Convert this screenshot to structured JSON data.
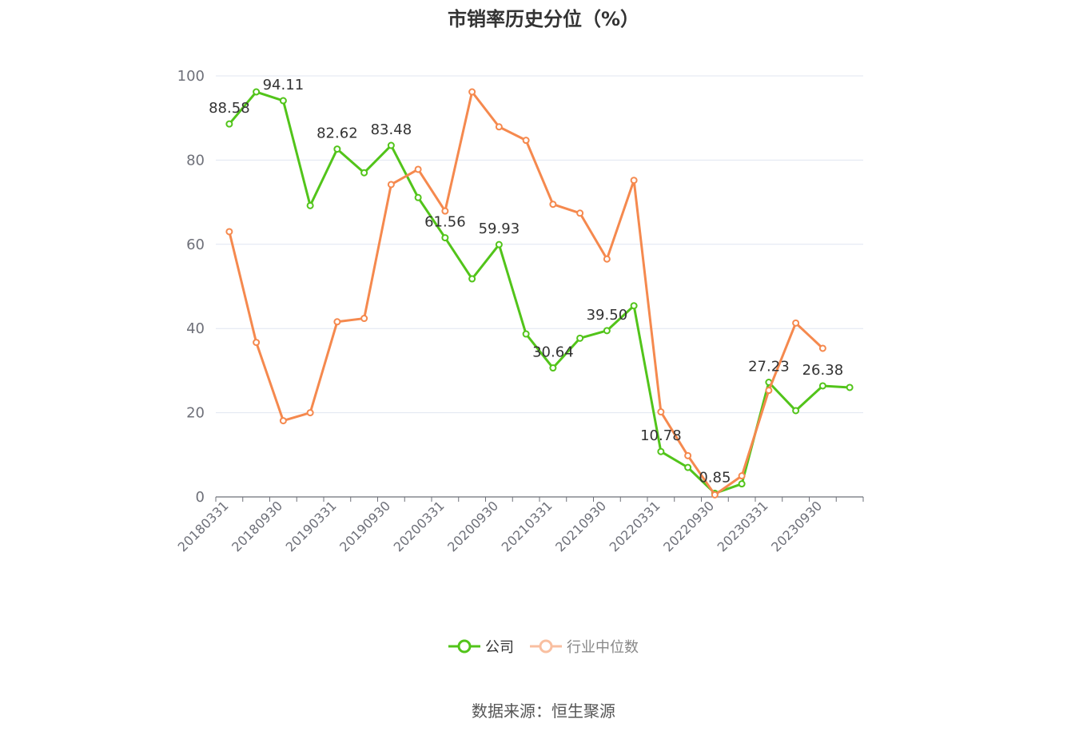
{
  "chart_data": {
    "type": "line",
    "title": "市销率历史分位（%）",
    "ylim": [
      0,
      100
    ],
    "y_ticks": [
      "0",
      "20",
      "40",
      "60",
      "80",
      "100"
    ],
    "x_tick_labels": [
      "20180331",
      "20180930",
      "20190331",
      "20190930",
      "20200331",
      "20200930",
      "20210331",
      "20210930",
      "20220331",
      "20220930",
      "20230331",
      "20230930"
    ],
    "grid": true,
    "legend_position": "bottom",
    "x": [
      "20180331",
      "20180630",
      "20180930",
      "20181231",
      "20190331",
      "20190630",
      "20190930",
      "20191231",
      "20200331",
      "20200630",
      "20200930",
      "20201231",
      "20210331",
      "20210630",
      "20210930",
      "20211231",
      "20220331",
      "20220630",
      "20220930",
      "20221231",
      "20230331",
      "20230630",
      "20230930",
      "20231231"
    ],
    "series": [
      {
        "name": "公司",
        "color": "#52c41a",
        "values": [
          88.58,
          96.2,
          94.11,
          69.2,
          82.62,
          77.0,
          83.48,
          71.1,
          61.56,
          51.8,
          59.93,
          38.7,
          30.64,
          37.7,
          39.5,
          45.4,
          10.78,
          7.0,
          0.85,
          3.1,
          27.23,
          20.5,
          26.38,
          26.0
        ],
        "labels": [
          "88.58",
          "",
          "94.11",
          "",
          "82.62",
          "",
          "83.48",
          "",
          "61.56",
          "",
          "59.93",
          "",
          "30.64",
          "",
          "39.50",
          "",
          "10.78",
          "",
          "0.85",
          "",
          "27.23",
          "",
          "26.38",
          ""
        ]
      },
      {
        "name": "行业中位数",
        "color": "#f5894e",
        "values": [
          63.0,
          36.7,
          18.1,
          20.0,
          41.6,
          42.4,
          74.2,
          77.8,
          67.9,
          96.2,
          87.9,
          84.7,
          69.5,
          67.4,
          56.5,
          75.2,
          20.2,
          9.8,
          0.5,
          5.0,
          25.3,
          41.3,
          35.3,
          null
        ]
      }
    ]
  },
  "source": "数据来源：恒生聚源"
}
